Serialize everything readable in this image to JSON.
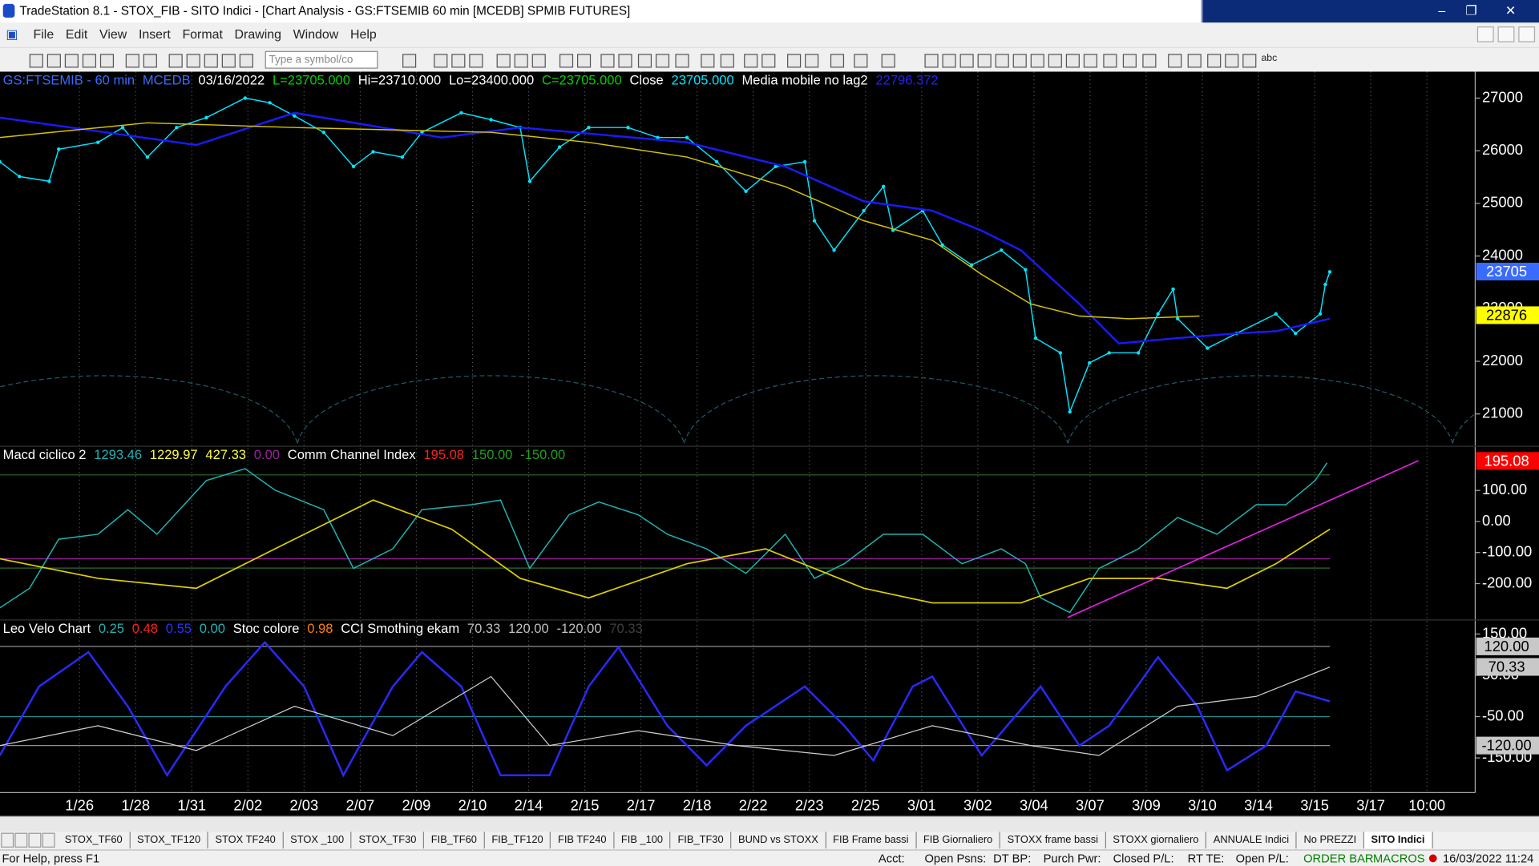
{
  "window": {
    "title": "TradeStation 8.1 - STOX_FIB - SITO Indici - [Chart Analysis - GS:FTSEMIB  60 min  [MCEDB] SPMIB FUTURES]"
  },
  "menu": [
    "File",
    "Edit",
    "View",
    "Insert",
    "Format",
    "Drawing",
    "Window",
    "Help"
  ],
  "toolbar": {
    "symbol_input": "Type a symbol/co",
    "text_tool": "abc"
  },
  "chart_data": [
    {
      "type": "line",
      "header": [
        {
          "text": "GS:FTSEMIB - 60 min",
          "color": "#3a6bff"
        },
        {
          "text": "MCEDB",
          "color": "#3a6bff"
        },
        {
          "text": "03/16/2022",
          "color": "#ffffff"
        },
        {
          "text": "L=23705.000",
          "color": "#00d000"
        },
        {
          "text": "Hi=23710.000",
          "color": "#ffffff"
        },
        {
          "text": "Lo=23400.000",
          "color": "#ffffff"
        },
        {
          "text": "C=23705.000",
          "color": "#00d000"
        },
        {
          "text": "Close",
          "color": "#ffffff"
        },
        {
          "text": "23705.000",
          "color": "#00e5ff"
        },
        {
          "text": "Media mobile no lag2",
          "color": "#ffffff"
        },
        {
          "text": "22796.372",
          "color": "#2020ff"
        }
      ],
      "xlim": [
        -1.416,
        24.86
      ],
      "xticks": [
        {
          "value": 0,
          "label": "1/26"
        },
        {
          "value": 1,
          "label": "1/28"
        },
        {
          "value": 2,
          "label": "1/31"
        },
        {
          "value": 3,
          "label": "2/02"
        },
        {
          "value": 4,
          "label": "2/03"
        },
        {
          "value": 5,
          "label": "2/07"
        },
        {
          "value": 6,
          "label": "2/09"
        },
        {
          "value": 7,
          "label": "2/10"
        },
        {
          "value": 8,
          "label": "2/14"
        },
        {
          "value": 9,
          "label": "2/15"
        },
        {
          "value": 10,
          "label": "2/17"
        },
        {
          "value": 11,
          "label": "2/18"
        },
        {
          "value": 12,
          "label": "2/22"
        },
        {
          "value": 13,
          "label": "2/23"
        },
        {
          "value": 14,
          "label": "2/25"
        },
        {
          "value": 15,
          "label": "3/01"
        },
        {
          "value": 16,
          "label": "3/02"
        },
        {
          "value": 17,
          "label": "3/04"
        },
        {
          "value": 18,
          "label": "3/07"
        },
        {
          "value": 19,
          "label": "3/09"
        },
        {
          "value": 20,
          "label": "3/10"
        },
        {
          "value": 21,
          "label": "3/14"
        },
        {
          "value": 22,
          "label": "3/15"
        },
        {
          "value": 23,
          "label": "3/17"
        },
        {
          "value": 24,
          "label": "10:00"
        }
      ],
      "ylim": [
        20385,
        27503
      ],
      "yticks": [
        21000,
        22000,
        23000,
        24000,
        25000,
        26000,
        27000
      ],
      "markers": [
        {
          "value": 23705,
          "color": "#3a6bff",
          "text_color": "#ffffff"
        },
        {
          "value": 22876,
          "color": "#ffff00",
          "text_color": "#000000"
        }
      ],
      "series": [
        {
          "color": "#00e5ff",
          "width": 1.2,
          "dots": true,
          "x": [
            -1.42,
            -1.07,
            -0.54,
            -0.37,
            0.33,
            0.77,
            1.21,
            1.73,
            2.26,
            2.95,
            3.39,
            3.83,
            4.35,
            4.88,
            5.23,
            5.75,
            6.1,
            6.8,
            7.33,
            7.85,
            8.02,
            8.55,
            9.07,
            9.77,
            10.3,
            10.82,
            11.35,
            11.87,
            12.4,
            12.92,
            13.09,
            13.44,
            13.97,
            14.32,
            14.49,
            15.02,
            15.37,
            15.89,
            16.42,
            16.85,
            17.03,
            17.47,
            17.64,
            17.99,
            18.34,
            18.86,
            19.21,
            19.48,
            19.56,
            20.09,
            20.61,
            21.31,
            21.66,
            22.1,
            22.19,
            22.27
          ],
          "values": [
            25790,
            25510,
            25420,
            26030,
            26160,
            26440,
            25880,
            26440,
            26630,
            27000,
            26910,
            26660,
            26350,
            25700,
            25980,
            25880,
            26350,
            26720,
            26590,
            26440,
            25420,
            26070,
            26440,
            26440,
            26250,
            26250,
            25790,
            25230,
            25700,
            25790,
            24670,
            24110,
            24860,
            25320,
            24490,
            24860,
            24210,
            23830,
            24110,
            23740,
            22440,
            22160,
            21040,
            21970,
            22160,
            22160,
            22900,
            23370,
            22810,
            22250,
            22530,
            22900,
            22530,
            22900,
            23460,
            23700
          ]
        },
        {
          "color": "#1a1aff",
          "width": 2,
          "x": [
            -1.42,
            2.08,
            3.83,
            6.45,
            7.85,
            10.82,
            12.57,
            13.97,
            15.19,
            16.07,
            16.77,
            17.81,
            18.51,
            19.56,
            20.61,
            21.31,
            22.27
          ],
          "values": [
            26630,
            26110,
            26720,
            26250,
            26440,
            26160,
            25700,
            25040,
            24860,
            24480,
            24110,
            23090,
            22340,
            22440,
            22530,
            22570,
            22810
          ]
        },
        {
          "color": "#d8c400",
          "width": 1.2,
          "x": [
            -1.42,
            1.21,
            3.83,
            7.33,
            9.07,
            10.82,
            12.57,
            13.97,
            15.19,
            16.07,
            16.94,
            17.81,
            18.69,
            19.95
          ],
          "values": [
            26250,
            26530,
            26440,
            26350,
            26160,
            25880,
            25320,
            24670,
            24300,
            23650,
            23090,
            22860,
            22810,
            22860
          ]
        }
      ]
    },
    {
      "type": "line",
      "header": [
        {
          "text": "Macd ciclico 2",
          "color": "#ffffff"
        },
        {
          "text": "1293.46",
          "color": "#1fb5b5"
        },
        {
          "text": "1229.97",
          "color": "#ffff40"
        },
        {
          "text": "427.33",
          "color": "#ffff40"
        },
        {
          "text": "0.00",
          "color": "#a020a0"
        },
        {
          "text": "Comm Channel Index",
          "color": "#ffffff"
        },
        {
          "text": "195.08",
          "color": "#ff2020"
        },
        {
          "text": "150.00",
          "color": "#20a020"
        },
        {
          "text": "-150.00",
          "color": "#20a020"
        }
      ],
      "ylim": [
        -317,
        242
      ],
      "yticks": [
        {
          "value": 100,
          "label": "100.00"
        },
        {
          "value": 0,
          "label": "0.00"
        },
        {
          "value": -100,
          "label": "-100.00"
        },
        {
          "value": -200,
          "label": "-200.00"
        }
      ],
      "markers": [
        {
          "value": 195.08,
          "color": "#ff0000",
          "text_color": "#ffffff"
        }
      ],
      "levels": [
        {
          "value": 150,
          "color": "#2e6b2e"
        },
        {
          "value": -120,
          "color": "#a020a0"
        },
        {
          "value": -150,
          "color": "#2e6b2e"
        }
      ],
      "series": [
        {
          "color": "#1fb5b5",
          "width": 1.2,
          "x": [
            -1.42,
            -0.89,
            -0.37,
            0.33,
            0.86,
            1.38,
            2.26,
            2.95,
            3.48,
            4.35,
            4.88,
            5.58,
            6.1,
            6.98,
            7.5,
            8.02,
            8.72,
            9.25,
            9.95,
            10.47,
            11.17,
            11.87,
            12.57,
            13.09,
            13.62,
            14.32,
            15.02,
            15.72,
            16.42,
            16.85,
            17.12,
            17.64,
            18.16,
            18.86,
            19.56,
            20.26,
            20.96,
            21.49,
            22.01,
            22.22
          ],
          "values": [
            -278,
            -215,
            -57,
            -41,
            38,
            -41,
            132,
            170,
            101,
            38,
            -151,
            -88,
            38,
            54,
            69,
            -151,
            22,
            63,
            22,
            -41,
            -88,
            -167,
            -41,
            -183,
            -136,
            -41,
            -41,
            -136,
            -88,
            -136,
            -246,
            -293,
            -151,
            -88,
            13,
            -41,
            54,
            54,
            132,
            189
          ]
        },
        {
          "color": "#e0d000",
          "width": 1.4,
          "x": [
            -1.42,
            0.33,
            2.08,
            3.48,
            5.23,
            6.63,
            7.85,
            9.07,
            10.82,
            12.22,
            13.97,
            15.19,
            16.77,
            17.99,
            19.21,
            20.44,
            21.31,
            22.27
          ],
          "values": [
            -120,
            -183,
            -215,
            -88,
            69,
            -25,
            -183,
            -246,
            -136,
            -88,
            -215,
            -262,
            -262,
            -183,
            -183,
            -215,
            -136,
            -25
          ]
        },
        {
          "color": "#e020e0",
          "width": 1.4,
          "x": [
            17.6,
            23.85
          ],
          "values": [
            -309,
            196
          ]
        }
      ]
    },
    {
      "type": "line",
      "header": [
        {
          "text": "Leo Velo Chart",
          "color": "#ffffff"
        },
        {
          "text": "0.25",
          "color": "#1fb5b5"
        },
        {
          "text": "0.48",
          "color": "#ff2020"
        },
        {
          "text": "0.55",
          "color": "#3030ff"
        },
        {
          "text": "0.00",
          "color": "#1fb5b5"
        },
        {
          "text": "Stoc colore",
          "color": "#ffffff"
        },
        {
          "text": "0.98",
          "color": "#ff8000"
        },
        {
          "text": "CCI Smothing ekam",
          "color": "#ffffff"
        },
        {
          "text": "70.33",
          "color": "#c0c0c0"
        },
        {
          "text": "120.00",
          "color": "#c0c0c0"
        },
        {
          "text": "-120.00",
          "color": "#c0c0c0"
        },
        {
          "text": "70.33",
          "color": "#404040"
        }
      ],
      "ylim": [
        -234,
        184
      ],
      "yticks": [
        {
          "value": 150,
          "label": "150.00"
        },
        {
          "value": 50,
          "label": "50.00"
        },
        {
          "value": -50,
          "label": "-50.00"
        },
        {
          "value": -150,
          "label": "-150.00"
        }
      ],
      "markers": [
        {
          "value": 120,
          "label": "120.00",
          "color": "#c8c8c8",
          "text_color": "#000000"
        },
        {
          "value": 70.33,
          "color": "#c8c8c8",
          "text_color": "#000000"
        },
        {
          "value": -120,
          "label": "-120.00",
          "color": "#c8c8c8",
          "text_color": "#000000"
        }
      ],
      "levels": [
        {
          "value": 120,
          "color": "#909090"
        },
        {
          "value": -50,
          "color": "#1f8f8f"
        },
        {
          "value": -120,
          "color": "#909090"
        }
      ],
      "series": [
        {
          "color": "#2a2aff",
          "width": 2,
          "x": [
            -1.42,
            -0.72,
            0.16,
            0.86,
            1.56,
            2.6,
            3.3,
            4.0,
            4.7,
            5.58,
            6.1,
            6.8,
            7.5,
            8.37,
            9.07,
            9.6,
            10.47,
            11.17,
            11.87,
            12.92,
            13.62,
            14.14,
            14.84,
            15.19,
            16.07,
            17.12,
            17.81,
            18.34,
            19.21,
            19.91,
            20.44,
            21.14,
            21.66,
            22.27
          ],
          "values": [
            -144,
            23,
            106,
            -25,
            -192,
            23,
            130,
            23,
            -192,
            23,
            106,
            23,
            -192,
            -192,
            23,
            118,
            -72,
            -168,
            -72,
            23,
            -72,
            -156,
            23,
            47,
            -144,
            23,
            -120,
            -72,
            94,
            -25,
            -180,
            -120,
            11,
            -13
          ]
        },
        {
          "color": "#d0d0d0",
          "width": 1,
          "x": [
            -1.42,
            0.33,
            2.08,
            3.83,
            5.58,
            7.33,
            8.37,
            9.95,
            11.7,
            13.44,
            15.19,
            16.94,
            18.16,
            19.56,
            20.96,
            22.27
          ],
          "values": [
            -120,
            -72,
            -132,
            -25,
            -96,
            47,
            -120,
            -84,
            -120,
            -144,
            -72,
            -120,
            -144,
            -25,
            -1,
            70
          ]
        }
      ]
    }
  ],
  "tabs": [
    "STOX_TF60",
    "STOX_TF120",
    "STOX TF240",
    "STOX _100",
    "STOX_TF30",
    "FIB_TF60",
    "FIB_TF120",
    "FIB TF240",
    "FIB _100",
    "FIB_TF30",
    "BUND vs STOXX",
    "FIB Frame bassi",
    "FIB Giornaliero",
    "STOXX frame bassi",
    "STOXX giornaliero",
    "ANNUALE Indici",
    "No PREZZI",
    "SITO Indici"
  ],
  "status_bar": [
    "For Help, press F1",
    "Acct:",
    "Open Psns:",
    "DT BP:",
    "Purch Pwr:",
    "Closed P/L:",
    "RT TE:",
    "Open P/L:",
    "ORDER BAR",
    "MACROS",
    "16/03/2022 11:24"
  ]
}
